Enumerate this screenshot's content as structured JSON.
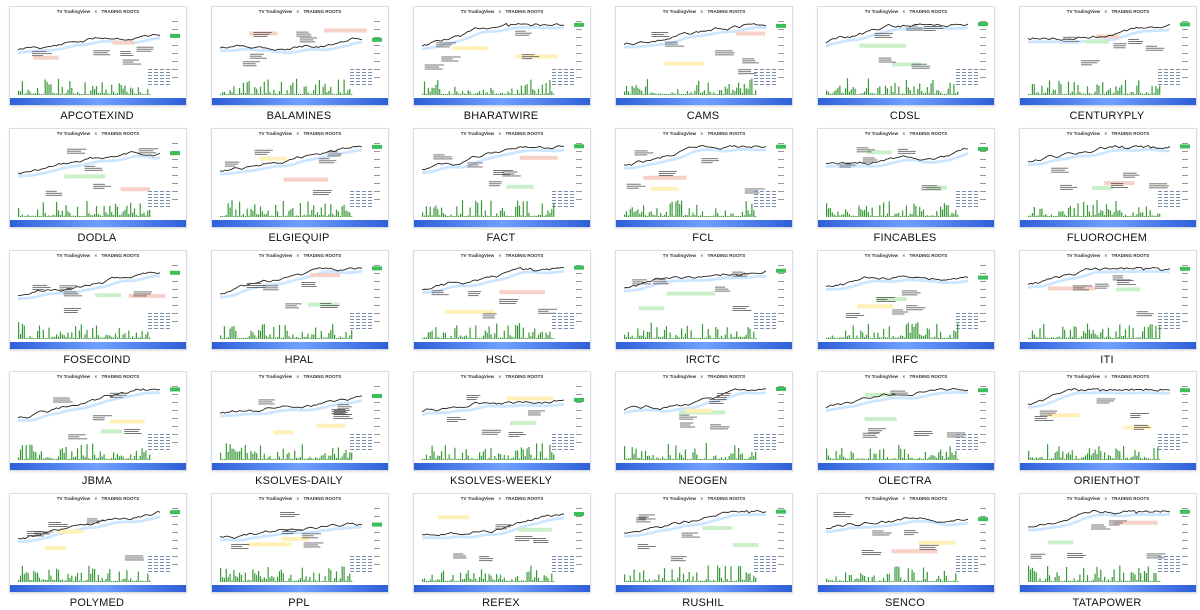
{
  "thumbnail_header": {
    "left_logo": "TV TradingView",
    "separator": "✕",
    "right_logo": "TRADING ROOTS"
  },
  "thumbnails": [
    {
      "caption": "APCOTEXIND"
    },
    {
      "caption": "BALAMINES"
    },
    {
      "caption": "BHARATWIRE"
    },
    {
      "caption": "CAMS"
    },
    {
      "caption": "CDSL"
    },
    {
      "caption": "CENTURYPLY"
    },
    {
      "caption": "DODLA"
    },
    {
      "caption": "ELGIEQUIP"
    },
    {
      "caption": "FACT"
    },
    {
      "caption": "FCL"
    },
    {
      "caption": "FINCABLES"
    },
    {
      "caption": "FLUOROCHEM"
    },
    {
      "caption": "FOSECOIND"
    },
    {
      "caption": "HPAL"
    },
    {
      "caption": "HSCL"
    },
    {
      "caption": "IRCTC"
    },
    {
      "caption": "IRFC"
    },
    {
      "caption": "ITI"
    },
    {
      "caption": "JBMA"
    },
    {
      "caption": "KSOLVES-DAILY"
    },
    {
      "caption": "KSOLVES-WEEKLY"
    },
    {
      "caption": "NEOGEN"
    },
    {
      "caption": "OLECTRA"
    },
    {
      "caption": "ORIENTHOT"
    },
    {
      "caption": "POLYMED"
    },
    {
      "caption": "PPL"
    },
    {
      "caption": "REFEX"
    },
    {
      "caption": "RUSHIL"
    },
    {
      "caption": "SENCO"
    },
    {
      "caption": "TATAPOWER"
    }
  ],
  "colors": {
    "price_line": "#222222",
    "ema_band": "#bfe0ff",
    "volume_bars": "#3a9a3a",
    "footer_bar": "#2f5fd8",
    "tile_border": "#d8dde6"
  }
}
